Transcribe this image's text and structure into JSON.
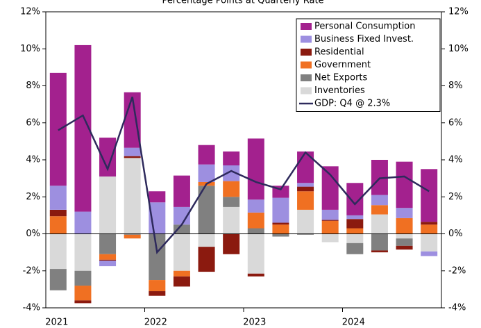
{
  "chart_data": {
    "type": "bar",
    "stacked": true,
    "title": "Percentage Points at Quarterly Rate",
    "categories": [
      "2021",
      null,
      null,
      null,
      "2022",
      null,
      null,
      null,
      "2023",
      null,
      null,
      null,
      "2024",
      null,
      null,
      null
    ],
    "series": [
      {
        "name": "Personal Consumption",
        "color": "#a3218e",
        "values": [
          6.1,
          9.0,
          2.1,
          3.0,
          0.6,
          1.7,
          1.05,
          0.75,
          3.3,
          0.65,
          1.7,
          2.35,
          1.75,
          1.9,
          2.5,
          2.85
        ]
      },
      {
        "name": "Business Fixed Invest.",
        "color": "#9d8fe0",
        "values": [
          1.3,
          1.2,
          -0.3,
          0.45,
          1.7,
          0.95,
          0.95,
          0.85,
          0.7,
          1.35,
          0.2,
          0.55,
          0.2,
          0.55,
          0.55,
          -0.25
        ]
      },
      {
        "name": "Residential",
        "color": "#8b1a0f",
        "values": [
          0.35,
          -0.15,
          -0.05,
          0.1,
          -0.25,
          -0.55,
          -1.35,
          -1.1,
          -0.15,
          0.1,
          0.25,
          0.05,
          0.5,
          -0.1,
          -0.2,
          0.15
        ]
      },
      {
        "name": "Government",
        "color": "#f07022",
        "values": [
          0.95,
          -0.8,
          -0.3,
          -0.2,
          -0.6,
          -0.3,
          0.2,
          0.85,
          0.85,
          0.5,
          1.0,
          0.7,
          0.3,
          0.5,
          0.85,
          0.5
        ]
      },
      {
        "name": "Net Exports",
        "color": "#808080",
        "values": [
          -1.15,
          -0.8,
          -1.1,
          -0.05,
          -2.5,
          0.5,
          2.6,
          0.55,
          0.3,
          -0.15,
          -0.05,
          0,
          -0.6,
          -0.9,
          -0.4,
          0
        ]
      },
      {
        "name": "Inventories",
        "color": "#d9d9d9",
        "values": [
          -1.9,
          -2.0,
          3.1,
          4.1,
          0,
          -2.0,
          -0.7,
          1.45,
          -2.15,
          0,
          1.3,
          -0.45,
          -0.5,
          1.05,
          -0.25,
          -0.95
        ]
      }
    ],
    "line": {
      "name": "GDP: Q4 @ 2.3%",
      "color": "#2e2a5c",
      "values": [
        5.6,
        6.4,
        3.5,
        7.4,
        -1.0,
        0.5,
        2.7,
        3.4,
        2.8,
        2.4,
        4.4,
        3.2,
        1.6,
        3.0,
        3.1,
        2.3
      ]
    },
    "ylim": [
      -4,
      12
    ],
    "yticks": [
      {
        "value": -4,
        "label": "-4%"
      },
      {
        "value": -2,
        "label": "-2%"
      },
      {
        "value": 0,
        "label": "0%"
      },
      {
        "value": 2,
        "label": "2%"
      },
      {
        "value": 4,
        "label": "4%"
      },
      {
        "value": 6,
        "label": "6%"
      },
      {
        "value": 8,
        "label": "8%"
      },
      {
        "value": 10,
        "label": "10%"
      },
      {
        "value": 12,
        "label": "12%"
      }
    ],
    "y2lim": [
      -4,
      12
    ],
    "y2ticks": [
      {
        "value": -4,
        "label": "-4%"
      },
      {
        "value": -2,
        "label": "-2%"
      },
      {
        "value": 0,
        "label": "0%"
      },
      {
        "value": 2,
        "label": "2%"
      },
      {
        "value": 4,
        "label": "4%"
      },
      {
        "value": 6,
        "label": "6%"
      },
      {
        "value": 8,
        "label": "8%"
      },
      {
        "value": 10,
        "label": "10%"
      },
      {
        "value": 12,
        "label": "12%"
      }
    ],
    "legend": "upper right"
  }
}
